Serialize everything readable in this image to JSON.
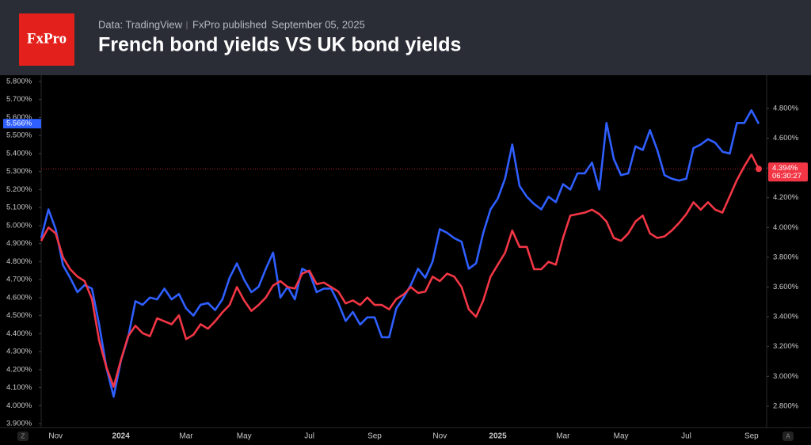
{
  "chart_data": {
    "type": "line",
    "logo": "FxPro",
    "source": "Data: TradingView",
    "publisher": "FxPro published",
    "date": "September 05, 2025",
    "title": "French bond yields VS UK bond yields",
    "controls": [
      "Z",
      "A"
    ],
    "countdown": "06:30:27",
    "categories": [
      null,
      null,
      "Nov",
      null,
      null,
      null,
      null,
      null,
      null,
      null,
      null,
      "2024",
      null,
      null,
      null,
      null,
      null,
      null,
      null,
      null,
      "Mar",
      null,
      null,
      null,
      null,
      null,
      null,
      null,
      "May",
      null,
      null,
      null,
      null,
      null,
      null,
      null,
      null,
      "Jul",
      null,
      null,
      null,
      null,
      null,
      null,
      null,
      null,
      "Sep",
      null,
      null,
      null,
      null,
      null,
      null,
      null,
      null,
      "Nov",
      null,
      null,
      null,
      null,
      null,
      null,
      null,
      "2025",
      null,
      null,
      null,
      null,
      null,
      null,
      null,
      null,
      "Mar",
      null,
      null,
      null,
      null,
      null,
      null,
      null,
      "May",
      null,
      null,
      null,
      null,
      null,
      null,
      null,
      null,
      "Jul",
      null,
      null,
      null,
      null,
      null,
      null,
      null,
      null,
      "Sep",
      null
    ],
    "series": [
      {
        "color": "#2f5fff",
        "axis": "y",
        "values": [
          4.93,
          5.09,
          4.98,
          4.78,
          4.71,
          4.63,
          4.67,
          4.65,
          4.45,
          4.21,
          4.05,
          4.25,
          4.38,
          4.58,
          4.56,
          4.6,
          4.59,
          4.65,
          4.59,
          4.62,
          4.54,
          4.5,
          4.56,
          4.57,
          4.53,
          4.59,
          4.71,
          4.79,
          4.7,
          4.63,
          4.66,
          4.76,
          4.85,
          4.6,
          4.66,
          4.59,
          4.76,
          4.74,
          4.63,
          4.65,
          4.65,
          4.57,
          4.47,
          4.52,
          4.45,
          4.49,
          4.49,
          4.38,
          4.38,
          4.54,
          4.6,
          4.67,
          4.76,
          4.71,
          4.8,
          4.98,
          4.96,
          4.93,
          4.91,
          4.76,
          4.79,
          4.96,
          5.09,
          5.15,
          5.26,
          5.45,
          5.22,
          5.16,
          5.12,
          5.09,
          5.16,
          5.13,
          5.23,
          5.2,
          5.29,
          5.29,
          5.35,
          5.2,
          5.57,
          5.37,
          5.28,
          5.29,
          5.44,
          5.42,
          5.53,
          5.42,
          5.28,
          5.26,
          5.25,
          5.26,
          5.43,
          5.45,
          5.48,
          5.46,
          5.41,
          5.4,
          5.57,
          5.57,
          5.64,
          5.566
        ],
        "value_labels": [
          null,
          null,
          null,
          null,
          null,
          null,
          null,
          null,
          null,
          null,
          null,
          null,
          null,
          null,
          null,
          null,
          null,
          null,
          null,
          null,
          null,
          null,
          null,
          null,
          null,
          null,
          null,
          null,
          null,
          null,
          null,
          null,
          null,
          null,
          null,
          null,
          null,
          null,
          null,
          null,
          null,
          null,
          null,
          null,
          null,
          null,
          null,
          null,
          null,
          null,
          null,
          null,
          null,
          null,
          null,
          null,
          null,
          null,
          null,
          null,
          null,
          null,
          null,
          null,
          null,
          null,
          null,
          null,
          null,
          null,
          null,
          null,
          null,
          null,
          null,
          null,
          null,
          null,
          null,
          null,
          null,
          null,
          null,
          null,
          null,
          null,
          null,
          null,
          null,
          null,
          null,
          null,
          null,
          null,
          null,
          null,
          null,
          null,
          null,
          "5.566%"
        ]
      },
      {
        "color": "#f23645",
        "axis": "y2",
        "values": [
          3.91,
          4.0,
          3.96,
          3.8,
          3.72,
          3.67,
          3.64,
          3.52,
          3.24,
          3.06,
          2.93,
          3.11,
          3.27,
          3.34,
          3.29,
          3.27,
          3.39,
          3.37,
          3.35,
          3.41,
          3.25,
          3.28,
          3.35,
          3.32,
          3.37,
          3.43,
          3.48,
          3.6,
          3.51,
          3.44,
          3.48,
          3.53,
          3.61,
          3.64,
          3.6,
          3.59,
          3.69,
          3.71,
          3.62,
          3.63,
          3.6,
          3.57,
          3.49,
          3.51,
          3.48,
          3.53,
          3.48,
          3.48,
          3.45,
          3.52,
          3.55,
          3.6,
          3.56,
          3.57,
          3.67,
          3.64,
          3.69,
          3.67,
          3.6,
          3.45,
          3.4,
          3.51,
          3.67,
          3.75,
          3.83,
          3.98,
          3.87,
          3.87,
          3.72,
          3.72,
          3.77,
          3.75,
          3.93,
          4.08,
          4.09,
          4.1,
          4.12,
          4.09,
          4.04,
          3.93,
          3.91,
          3.96,
          4.04,
          4.08,
          3.96,
          3.93,
          3.94,
          3.98,
          4.03,
          4.09,
          4.17,
          4.12,
          4.17,
          4.12,
          4.1,
          4.21,
          4.32,
          4.41,
          4.49,
          4.394
        ],
        "value_labels": [
          null,
          null,
          null,
          null,
          null,
          null,
          null,
          null,
          null,
          null,
          null,
          null,
          null,
          null,
          null,
          null,
          null,
          null,
          null,
          null,
          null,
          null,
          null,
          null,
          null,
          null,
          null,
          null,
          null,
          null,
          null,
          null,
          null,
          null,
          null,
          null,
          null,
          null,
          null,
          null,
          null,
          null,
          null,
          null,
          null,
          null,
          null,
          null,
          null,
          null,
          null,
          null,
          null,
          null,
          null,
          null,
          null,
          null,
          null,
          null,
          null,
          null,
          null,
          null,
          null,
          null,
          null,
          null,
          null,
          null,
          null,
          null,
          null,
          null,
          null,
          null,
          null,
          null,
          null,
          null,
          null,
          null,
          null,
          null,
          null,
          null,
          null,
          null,
          null,
          null,
          null,
          null,
          null,
          null,
          null,
          null,
          null,
          null,
          null,
          "4.394%"
        ]
      }
    ],
    "ylim": [
      3.878,
      5.835
    ],
    "yticks": [
      {
        "value": 5.8,
        "label": "5.800%"
      },
      {
        "value": 5.7,
        "label": "5.700%"
      },
      {
        "value": 5.6,
        "label": "5.600%"
      },
      {
        "value": 5.5,
        "label": "5.500%"
      },
      {
        "value": 5.4,
        "label": "5.400%"
      },
      {
        "value": 5.3,
        "label": "5.300%"
      },
      {
        "value": 5.2,
        "label": "5.200%"
      },
      {
        "value": 5.1,
        "label": "5.100%"
      },
      {
        "value": 5.0,
        "label": "5.000%"
      },
      {
        "value": 4.9,
        "label": "4.900%"
      },
      {
        "value": 4.8,
        "label": "4.800%"
      },
      {
        "value": 4.7,
        "label": "4.700%"
      },
      {
        "value": 4.6,
        "label": "4.600%"
      },
      {
        "value": 4.5,
        "label": "4.500%"
      },
      {
        "value": 4.4,
        "label": "4.400%"
      },
      {
        "value": 4.3,
        "label": "4.300%"
      },
      {
        "value": 4.2,
        "label": "4.200%"
      },
      {
        "value": 4.1,
        "label": "4.100%"
      },
      {
        "value": 4.0,
        "label": "4.000%"
      },
      {
        "value": 3.9,
        "label": "3.900%"
      }
    ],
    "y2lim": [
      2.656,
      5.023
    ],
    "y2ticks": [
      {
        "value": 4.8,
        "label": "4.800%"
      },
      {
        "value": 4.6,
        "label": "4.600%"
      },
      {
        "value": 4.4,
        "label": "4.400%"
      },
      {
        "value": 4.2,
        "label": "4.200%"
      },
      {
        "value": 4.0,
        "label": "4.000%"
      },
      {
        "value": 3.8,
        "label": "3.800%"
      },
      {
        "value": 3.6,
        "label": "3.600%"
      },
      {
        "value": 3.4,
        "label": "3.400%"
      },
      {
        "value": 3.2,
        "label": "3.200%"
      },
      {
        "value": 3.0,
        "label": "3.000%"
      },
      {
        "value": 2.8,
        "label": "2.800%"
      }
    ],
    "grid": false
  }
}
